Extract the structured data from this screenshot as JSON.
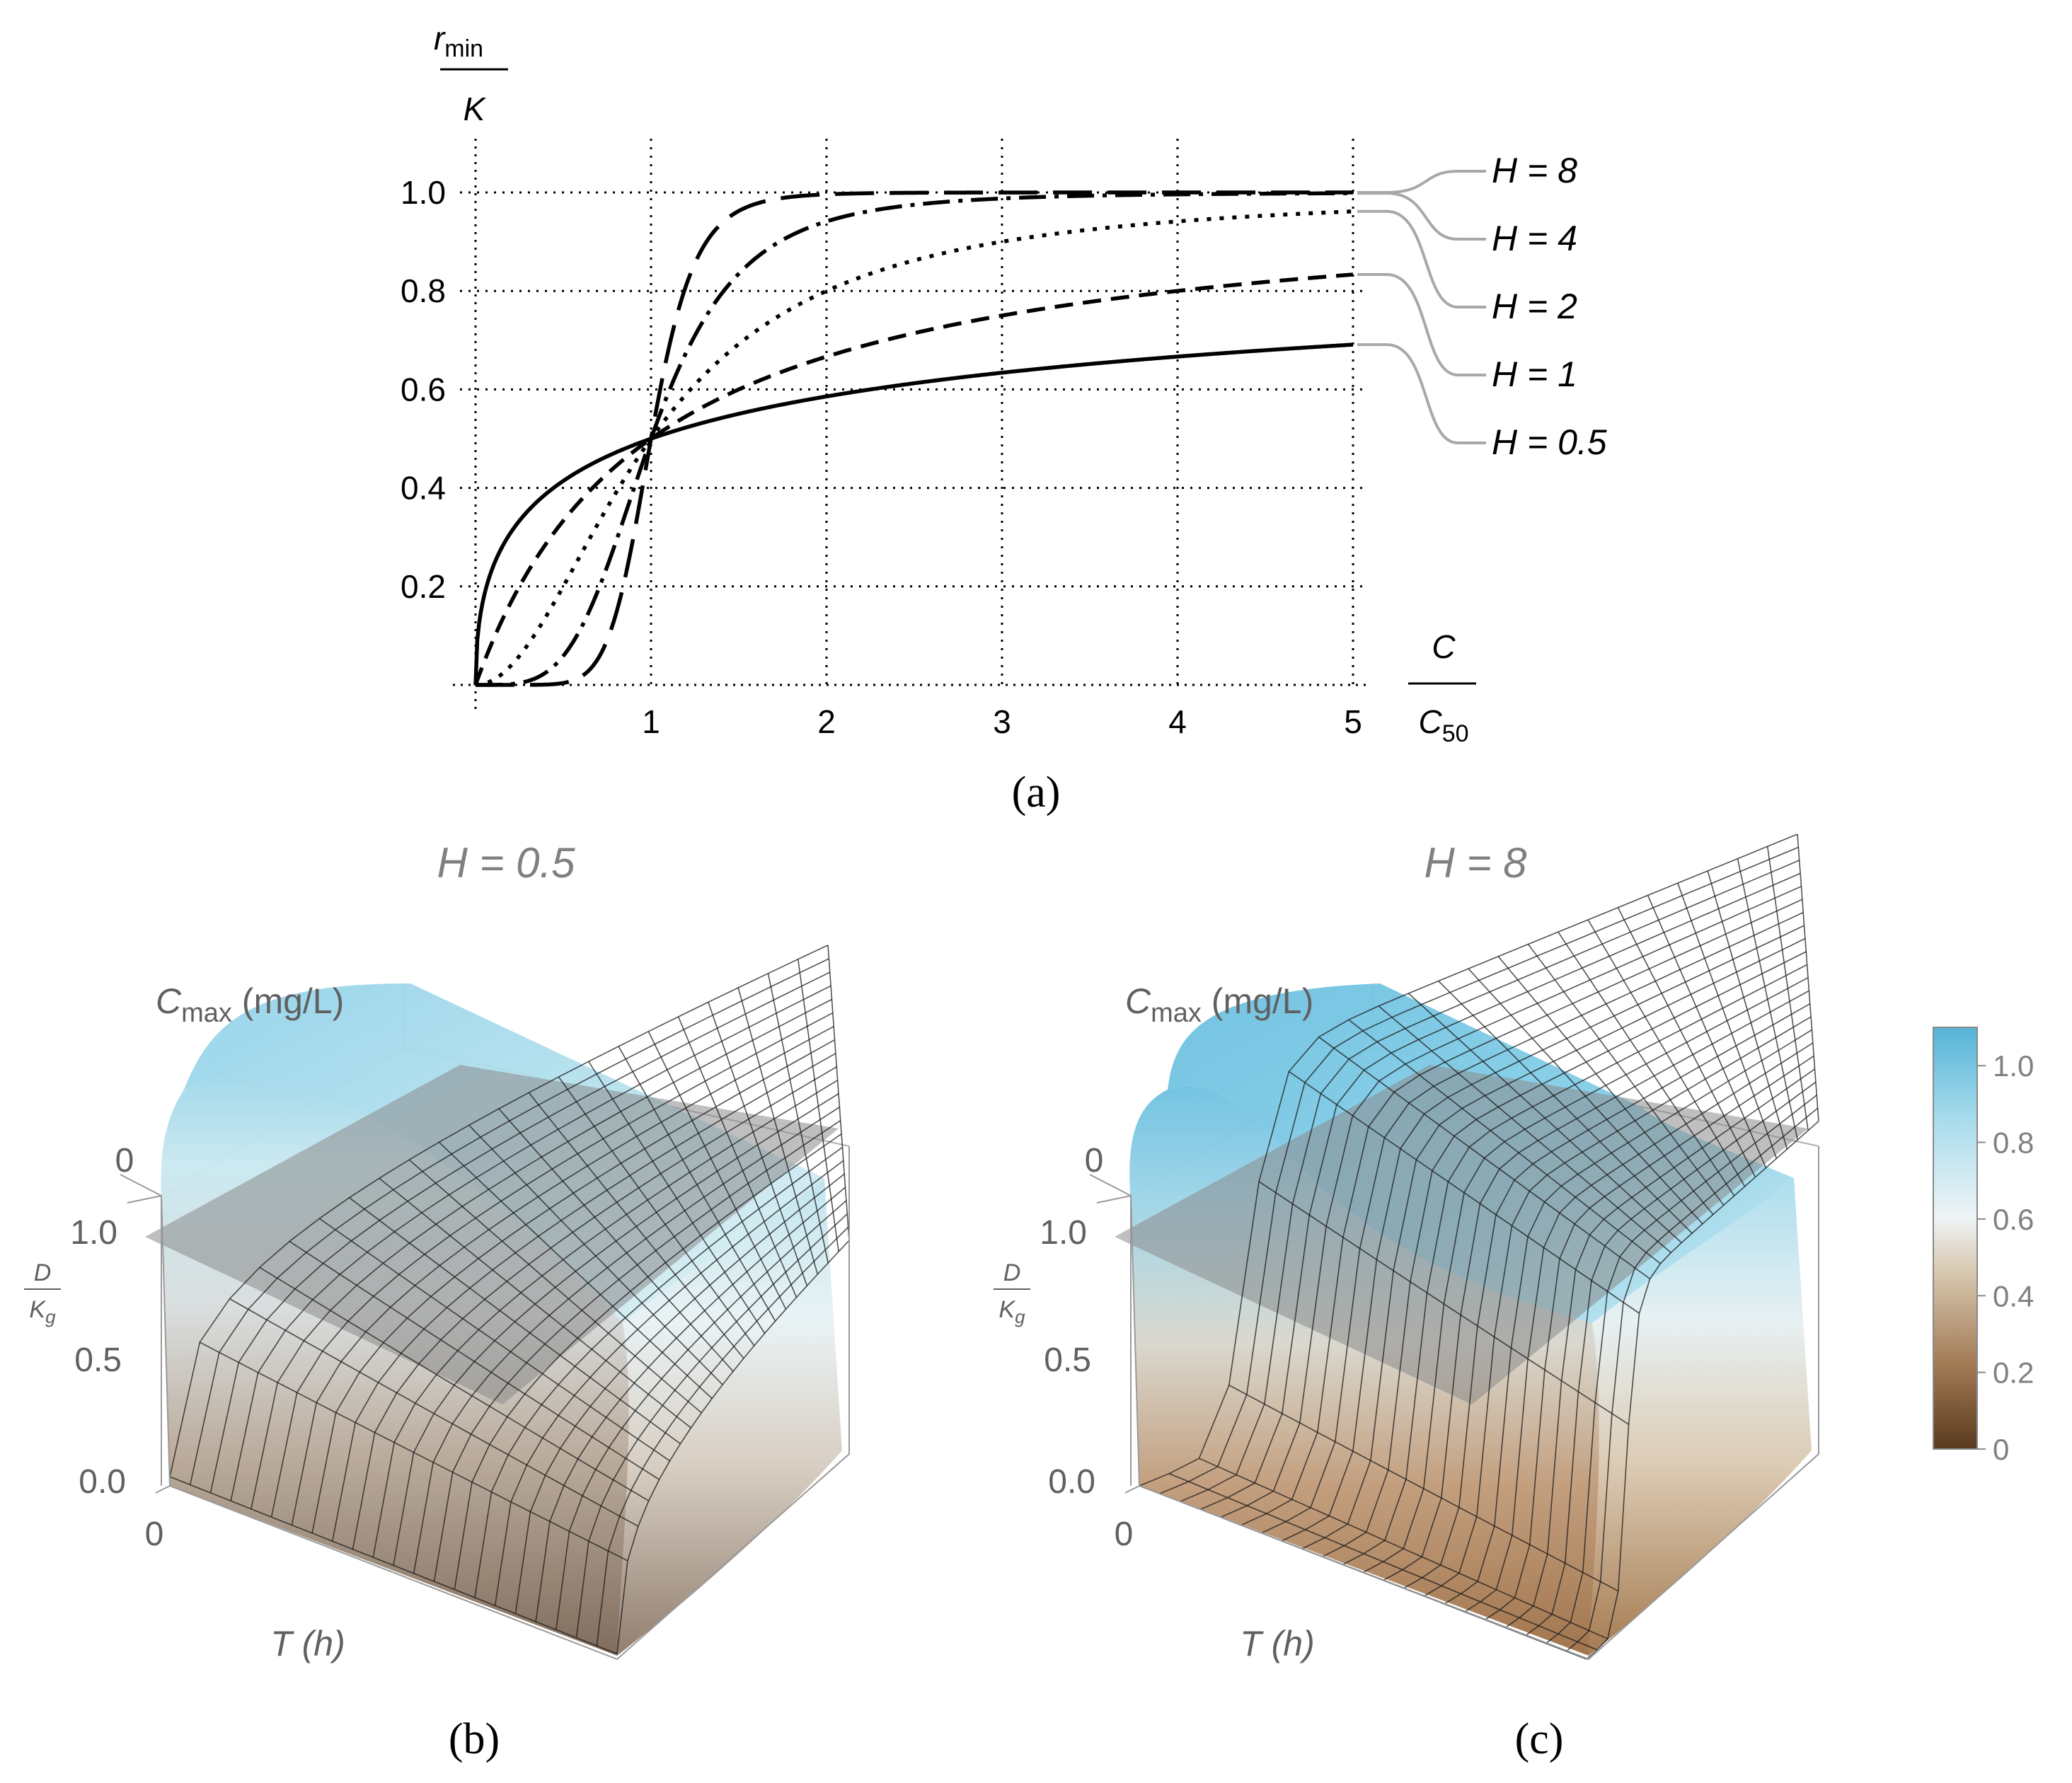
{
  "panel_labels": {
    "a": "(a)",
    "b": "(b)",
    "c": "(c)"
  },
  "colors": {
    "curve": "#000000",
    "grid": "#000000",
    "leader": "#a8a8a8",
    "plot_title": "#808080",
    "axis3d": "#606060",
    "colormap": [
      "#5a3a1e",
      "#a27a55",
      "#d8c8b0",
      "#eef4f6",
      "#a8dcec",
      "#55b4d8"
    ],
    "plane": "#8a8a8a"
  },
  "chart_data": [
    {
      "type": "line",
      "ylabel_top": "r",
      "ylabel_sub": "min",
      "ylabel_bottom": "K",
      "xlabel_top": "C",
      "xlabel_bottom": "C",
      "xlabel_sub": "50",
      "xlim": [
        0,
        5
      ],
      "ylim": [
        0,
        1.0
      ],
      "xticks": [
        1,
        2,
        3,
        4,
        5
      ],
      "yticks": [
        0.2,
        0.4,
        0.6,
        0.8,
        1.0
      ],
      "grid": true,
      "series": [
        {
          "name": "H = 8",
          "hill": 8,
          "dash": "55,22"
        },
        {
          "name": "H = 4",
          "hill": 4,
          "dash": "38,12,6,12"
        },
        {
          "name": "H = 2",
          "hill": 2,
          "dash": "6,12"
        },
        {
          "name": "H = 1",
          "hill": 1,
          "dash": "26,14"
        },
        {
          "name": "H = 0.5",
          "hill": 0.5,
          "dash": ""
        }
      ]
    },
    {
      "type": "surface3d",
      "title": "H = 0.5",
      "hill": 0.5,
      "axis_label_top": "C",
      "axis_label_top_sub": "max",
      "axis_label_top_unit": " (mg/L)",
      "axis_label_top_tick": "0",
      "zlabel_top": "D",
      "zlabel_bottom": "K",
      "zlabel_bottom_sub": "g",
      "zticks": [
        "1.0",
        "0.5",
        "0.0"
      ],
      "tlabel": "T (h)",
      "tlabel_tick": "0"
    },
    {
      "type": "surface3d",
      "title": "H = 8",
      "hill": 8,
      "axis_label_top": "C",
      "axis_label_top_sub": "max",
      "axis_label_top_unit": " (mg/L)",
      "axis_label_top_tick": "0",
      "zlabel_top": "D",
      "zlabel_bottom": "K",
      "zlabel_bottom_sub": "g",
      "zticks": [
        "1.0",
        "0.5",
        "0.0"
      ],
      "tlabel": "T (h)",
      "tlabel_tick": "0"
    },
    {
      "type": "colorbar",
      "range": [
        0,
        1.1
      ],
      "ticks": [
        "1.0",
        "0.8",
        "0.6",
        "0.4",
        "0.2",
        "0"
      ]
    }
  ]
}
